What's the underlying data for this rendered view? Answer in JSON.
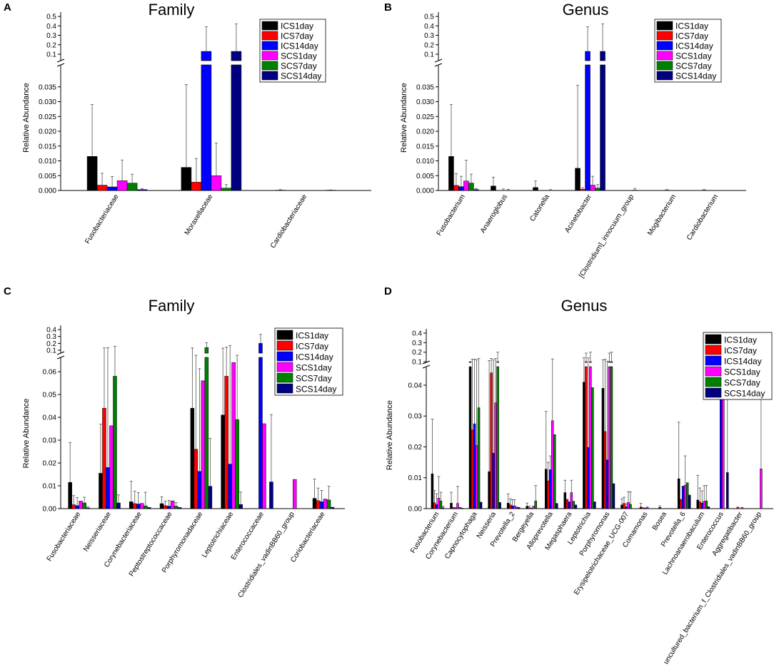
{
  "figure": {
    "series_names": [
      "ICS1day",
      "ICS7day",
      "ICS14day",
      "SCS1day",
      "SCS7day",
      "SCS14day"
    ],
    "series_colors": [
      "#000000",
      "#ff0000",
      "#0000ff",
      "#ff00ff",
      "#008000",
      "#000080"
    ],
    "error_bar_color": "#555555"
  },
  "chart_data": [
    {
      "panel": "A",
      "type": "bar",
      "title": "Family",
      "ylabel": "Relative Abundance",
      "xlabel": "",
      "ylim_lower": [
        0,
        0.04
      ],
      "ylim_upper": [
        0.1,
        0.5
      ],
      "lower_ticks": [
        "0.000",
        "0.005",
        "0.010",
        "0.015",
        "0.020",
        "0.025",
        "0.030",
        "0.035"
      ],
      "upper_ticks": [
        "0.1",
        "0.2",
        "0.3",
        "0.4",
        "0.5"
      ],
      "categories": [
        "Fusobacteriaceae",
        "Moraxellaceae",
        "Cardiobacteriaceae"
      ],
      "series": [
        {
          "name": "ICS1day",
          "values": [
            0.0115,
            0.0078,
            0.0001
          ],
          "errors": [
            0.0175,
            0.028,
            0.0002
          ]
        },
        {
          "name": "ICS7day",
          "values": [
            0.0018,
            0.0028,
            0.0
          ],
          "errors": [
            0.004,
            0.008,
            0.0
          ]
        },
        {
          "name": "ICS14day",
          "values": [
            0.0012,
            0.13,
            0.0
          ],
          "errors": [
            0.0035,
            0.26,
            0.0
          ]
        },
        {
          "name": "SCS1day",
          "values": [
            0.0033,
            0.005,
            0.0
          ],
          "errors": [
            0.007,
            0.011,
            0.0
          ]
        },
        {
          "name": "SCS7day",
          "values": [
            0.0025,
            0.0008,
            0.0
          ],
          "errors": [
            0.003,
            0.0012,
            0.0
          ]
        },
        {
          "name": "SCS14day",
          "values": [
            0.0003,
            0.13,
            0.0001
          ],
          "errors": [
            0.0003,
            0.29,
            0.0001
          ]
        }
      ]
    },
    {
      "panel": "B",
      "type": "bar",
      "title": "Genus",
      "ylabel": "Relative Abundance",
      "xlabel": "",
      "ylim_lower": [
        0,
        0.04
      ],
      "ylim_upper": [
        0.1,
        0.5
      ],
      "lower_ticks": [
        "0.000",
        "0.005",
        "0.010",
        "0.015",
        "0.020",
        "0.025",
        "0.030",
        "0.035"
      ],
      "upper_ticks": [
        "0.1",
        "0.2",
        "0.3",
        "0.4",
        "0.5"
      ],
      "categories": [
        "Fusobacterium",
        "Anaeroglobus",
        "Catonella",
        "Acinetobacter",
        "[Clostridium]_innocuum_group",
        "Mogibacterium",
        "Cardiobacterium"
      ],
      "series": [
        {
          "name": "ICS1day",
          "values": [
            0.0115,
            0.0015,
            0.001,
            0.0075,
            0.0,
            0.0,
            0.0001
          ],
          "errors": [
            0.0175,
            0.003,
            0.0022,
            0.028,
            0.0,
            0.0,
            0.0002
          ]
        },
        {
          "name": "ICS7day",
          "values": [
            0.0017,
            0.0,
            0.0,
            0.0004,
            0.0,
            0.0001,
            0.0
          ],
          "errors": [
            0.004,
            0.0,
            0.0,
            0.0005,
            0.0,
            0.0002,
            0.0
          ]
        },
        {
          "name": "ICS14day",
          "values": [
            0.0013,
            0.0,
            0.0,
            0.13,
            0.0,
            0.0,
            0.0
          ],
          "errors": [
            0.0035,
            0.0005,
            0.0,
            0.26,
            0.0,
            0.0,
            0.0
          ]
        },
        {
          "name": "SCS1day",
          "values": [
            0.0032,
            0.0,
            0.0,
            0.0018,
            0.0001,
            0.0,
            0.0
          ],
          "errors": [
            0.007,
            0.0004,
            0.0003,
            0.003,
            0.0006,
            0.0,
            0.0
          ]
        },
        {
          "name": "SCS7day",
          "values": [
            0.0025,
            0.0,
            0.0,
            0.0008,
            0.0,
            0.0,
            0.0
          ],
          "errors": [
            0.003,
            0.0,
            0.0,
            0.0012,
            0.0,
            0.0,
            0.0
          ]
        },
        {
          "name": "SCS14day",
          "values": [
            0.0003,
            0.0,
            0.0,
            0.13,
            0.0,
            0.0,
            0.0
          ],
          "errors": [
            0.0003,
            0.0,
            0.0,
            0.29,
            0.0,
            0.0,
            0.0
          ]
        }
      ]
    },
    {
      "panel": "C",
      "type": "bar",
      "title": "Family",
      "ylabel": "Relative Abundance",
      "xlabel": "",
      "ylim_lower": [
        0,
        0.065
      ],
      "ylim_upper": [
        0.1,
        0.4
      ],
      "lower_ticks": [
        "0.00",
        "0.01",
        "0.02",
        "0.03",
        "0.04",
        "0.05",
        "0.06"
      ],
      "upper_ticks": [
        "0.1",
        "0.2",
        "0.3",
        "0.4"
      ],
      "categories": [
        "Fusobacteriaceae",
        "Neisseriaceae",
        "Corynebacteriaceae",
        "Peptostreptococcaceae",
        "Porphyromonadaceae",
        "Leptotrichiaceae",
        "Enterococcaceae",
        "Clostridiales_vadinBB60_group",
        "Coriobacteriaceae"
      ],
      "series": [
        {
          "name": "ICS1day",
          "values": [
            0.0115,
            0.0155,
            0.003,
            0.0022,
            0.044,
            0.041,
            0.0,
            0.0,
            0.0045
          ],
          "errors": [
            0.0175,
            0.0215,
            0.009,
            0.003,
            0.09,
            0.09,
            0.0,
            0.0,
            0.0085
          ]
        },
        {
          "name": "ICS7day",
          "values": [
            0.0017,
            0.044,
            0.0022,
            0.0013,
            0.026,
            0.058,
            0.0,
            0.0,
            0.0035
          ],
          "errors": [
            0.004,
            0.09,
            0.0055,
            0.002,
            0.04,
            0.09,
            0.0,
            0.0,
            0.0055
          ]
        },
        {
          "name": "ICS14day",
          "values": [
            0.0013,
            0.018,
            0.002,
            0.0011,
            0.0163,
            0.0195,
            0.2,
            0.0,
            0.003
          ],
          "errors": [
            0.0035,
            0.12,
            0.005,
            0.0025,
            0.045,
            0.15,
            0.13,
            0.0,
            0.005
          ]
        },
        {
          "name": "SCS1day",
          "values": [
            0.0033,
            0.0363,
            0.0023,
            0.0034,
            0.056,
            0.064,
            0.0372,
            0.0128,
            0.0042
          ]
        },
        {
          "name": "SCS7day",
          "values": [
            0.0025,
            0.058,
            0.0012,
            0.0011,
            0.14,
            0.039,
            0.0,
            0.0,
            0.0038
          ],
          "errors": [
            0.0025,
            0.1,
            0.006,
            0.0015,
            0.07,
            0.035,
            0.0,
            0.0,
            0.006
          ]
        },
        {
          "name": "SCS14day",
          "values": [
            0.0003,
            0.0025,
            0.0005,
            0.0005,
            0.0098,
            0.0018,
            0.0117,
            0.0,
            0.0006
          ],
          "errors": [
            0.0005,
            0.0035,
            0.0,
            0.0,
            0.021,
            0.0055,
            0.0295,
            0.0,
            0.0
          ]
        }
      ]
    },
    {
      "panel": "D",
      "type": "bar",
      "title": "Genus",
      "ylabel": "Relative Abundance",
      "xlabel": "",
      "ylim_lower": [
        0,
        0.046
      ],
      "ylim_upper": [
        0.1,
        0.4
      ],
      "lower_ticks": [
        "0.00",
        "0.01",
        "0.02",
        "0.03",
        "0.04"
      ],
      "upper_ticks": [
        "0.1",
        "0.2",
        "0.3",
        "0.4"
      ],
      "categories": [
        "Fusobacterium",
        "Corynebacterium",
        "Capnocytophaga",
        "Neisseria",
        "Prevotella_2",
        "Bergeyella",
        "Alloprevotella",
        "Megasphaera",
        "Leptotrichia",
        "Porphyromonas",
        "Erysipelotrichaceae_UCG-007",
        "Comamonas",
        "Bosea",
        "Prevotella_6",
        "Lachnoanaerobaculum",
        "Enterococcus",
        "Aggregatibacter",
        "uncultured_bacterium_f_Clostridiales_vadinBB60_group"
      ],
      "series": [
        {
          "name": "ICS1day",
          "values": [
            0.0113,
            0.0018,
            0.1,
            0.012,
            0.0018,
            0.0008,
            0.0128,
            0.0052,
            0.041,
            0.039,
            0.0012,
            0.0005,
            0.0004,
            0.0097,
            0.0028,
            0.0,
            0.0,
            0.0
          ],
          "errors": [
            0.0177,
            0.0035,
            0.0,
            0.1,
            0.003,
            0.001,
            0.0187,
            0.004,
            0.1,
            0.08,
            0.002,
            0.0012,
            0.0005,
            0.0183,
            0.008,
            0.0,
            0.0,
            0.0
          ]
        },
        {
          "name": "ICS7day",
          "values": [
            0.0019,
            0.0004,
            0.0255,
            0.044,
            0.0012,
            0.0003,
            0.009,
            0.003,
            0.1,
            0.025,
            0.0017,
            0.0003,
            0.0,
            0.003,
            0.0022,
            0.0,
            0.0005,
            0.0
          ],
          "errors": [
            0.004,
            0.0,
            0.1,
            0.09,
            0.002,
            0.0005,
            0.006,
            0.0,
            0.09,
            0.1,
            0.002,
            0.0,
            0.0,
            0.0,
            0.0045,
            0.0,
            0.0,
            0.0
          ]
        },
        {
          "name": "ICS14day",
          "values": [
            0.0013,
            0.0003,
            0.0275,
            0.018,
            0.0009,
            0.0002,
            0.0126,
            0.0022,
            0.0198,
            0.0158,
            0.0006,
            0.0002,
            0.0,
            0.0073,
            0.0018,
            0.2,
            0.0,
            0.0
          ],
          "errors": [
            0.0035,
            0.0,
            0.1,
            0.1,
            0.002,
            0.0,
            0.0045,
            0.0,
            0.12,
            0.09,
            0.001,
            0.0,
            0.0,
            0.0,
            0.004,
            0.12,
            0.0,
            0.0
          ]
        },
        {
          "name": "SCS1day",
          "values": [
            0.0034,
            0.0017,
            0.0205,
            0.0343,
            0.0009,
            0.0008,
            0.0285,
            0.0052,
            0.1,
            0.1,
            0.002,
            0.0005,
            0.0,
            0.0076,
            0.0024,
            0.0375,
            0.0004,
            0.0129
          ],
          "errors": [
            0.007,
            0.0055,
            0.1,
            0.1,
            0.002,
            0.0,
            0.1,
            0.004,
            0.1,
            0.09,
            0.0035,
            0.0,
            0.0,
            0.0095,
            0.005,
            0.13,
            0.0,
            0.1
          ]
        },
        {
          "name": "SCS7day",
          "values": [
            0.0025,
            0.0004,
            0.0327,
            0.1,
            0.0005,
            0.0025,
            0.024,
            0.0024,
            0.0392,
            0.1,
            0.0014,
            0.0,
            0.0,
            0.0084,
            0.0025,
            0.0,
            0.0,
            0.0
          ],
          "errors": [
            0.0028,
            0.0,
            0.1,
            0.1,
            0.0,
            0.005,
            0.0,
            0.0,
            0.0,
            0.1,
            0.004,
            0.0,
            0.0,
            0.0,
            0.005,
            0.0,
            0.0,
            0.0
          ]
        },
        {
          "name": "SCS14day",
          "values": [
            0.0003,
            0.0002,
            0.0021,
            0.002,
            0.0004,
            0.0,
            0.0017,
            0.0012,
            0.0022,
            0.0081,
            0.0,
            0.0,
            0.0,
            0.0044,
            0.0006,
            0.0117,
            0.0,
            0.0
          ],
          "errors": [
            0.0005,
            0.0,
            0.0,
            0.0,
            0.0,
            0.0,
            0.0,
            0.0,
            0.0,
            0.0,
            0.0,
            0.0,
            0.0,
            0.0,
            0.0,
            0.0295,
            0.0,
            0.0
          ]
        }
      ]
    }
  ]
}
